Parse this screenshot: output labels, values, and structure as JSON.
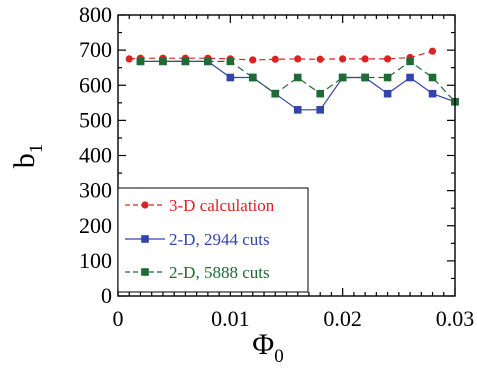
{
  "chart_data": {
    "type": "line",
    "xlabel": {
      "main": "Φ",
      "sub": "0"
    },
    "ylabel": {
      "main": "b",
      "sub": "1"
    },
    "xlim": [
      0,
      0.03
    ],
    "ylim": [
      0,
      800
    ],
    "xticks": [
      "0",
      "0.01",
      "0.02",
      "0.03"
    ],
    "yticks": [
      "0",
      "100",
      "200",
      "300",
      "400",
      "500",
      "600",
      "700",
      "800"
    ],
    "legend_position": "bottom-left",
    "series": [
      {
        "name": "3-D calculation",
        "color": "#dd2222",
        "marker": "circle",
        "x": [
          0.001,
          0.002,
          0.004,
          0.006,
          0.008,
          0.01,
          0.012,
          0.014,
          0.016,
          0.018,
          0.02,
          0.022,
          0.024,
          0.026,
          0.028
        ],
        "y": [
          675,
          677,
          677,
          677,
          677,
          675,
          672,
          674,
          675,
          674,
          675,
          675,
          675,
          679,
          697
        ]
      },
      {
        "name": "2-D, 2944 cuts",
        "color": "#3344aa",
        "marker": "square",
        "x": [
          0.002,
          0.004,
          0.006,
          0.008,
          0.01,
          0.012,
          0.014,
          0.016,
          0.018,
          0.02,
          0.022,
          0.024,
          0.026,
          0.028,
          0.03
        ],
        "y": [
          668,
          668,
          668,
          668,
          622,
          622,
          576,
          530,
          530,
          622,
          622,
          576,
          622,
          576,
          553
        ]
      },
      {
        "name": "2-D, 5888 cuts",
        "color": "#1f6b35",
        "marker": "square",
        "x": [
          0.002,
          0.004,
          0.006,
          0.008,
          0.01,
          0.012,
          0.014,
          0.016,
          0.018,
          0.02,
          0.022,
          0.024,
          0.026,
          0.028,
          0.03
        ],
        "y": [
          668,
          668,
          668,
          668,
          668,
          622,
          576,
          622,
          576,
          622,
          622,
          622,
          668,
          622,
          553
        ]
      }
    ]
  }
}
